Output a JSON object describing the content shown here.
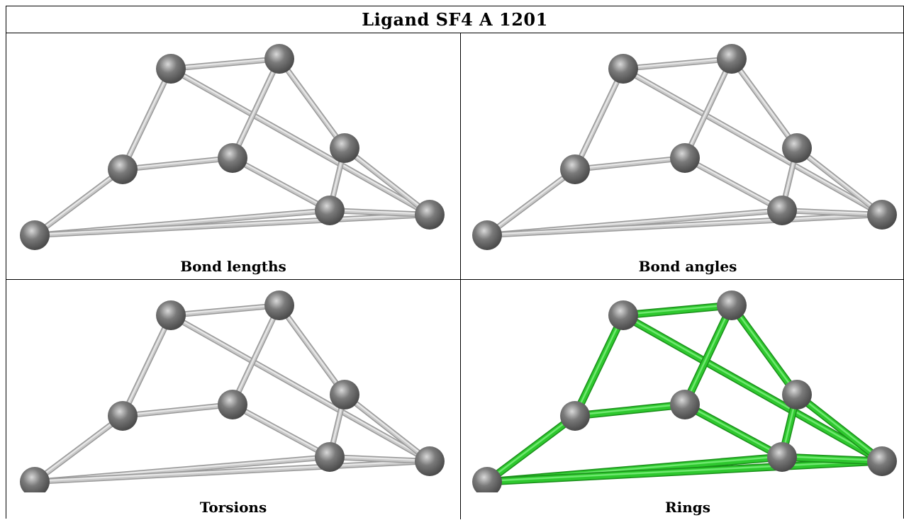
{
  "title": "Ligand SF4 A 1201",
  "panels": [
    {
      "caption": "Bond lengths",
      "bond_color": "#c8c8c8",
      "highlight": false
    },
    {
      "caption": "Bond angles",
      "bond_color": "#c8c8c8",
      "highlight": false
    },
    {
      "caption": "Torsions",
      "bond_color": "#c8c8c8",
      "highlight": false
    },
    {
      "caption": "Rings",
      "bond_color": "#2ec82e",
      "highlight": true
    }
  ],
  "colors": {
    "atom": "#7a7a7a",
    "bond_gray": "#c8c8c8",
    "bond_green": "#2ec82e",
    "border": "#000000"
  }
}
